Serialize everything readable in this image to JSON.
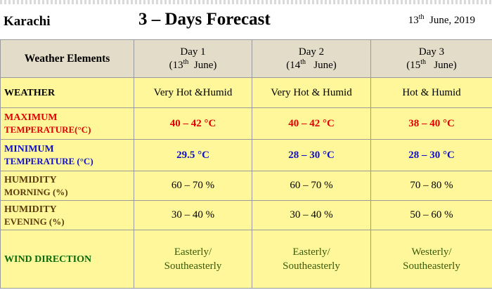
{
  "header": {
    "city": "Karachi",
    "title": "3 – Days Forecast",
    "date_day": "13",
    "date_suffix": "th",
    "date_rest": "June, 2019"
  },
  "columns": {
    "label_header": "Weather Elements",
    "days": [
      {
        "label": "Day 1",
        "date_num": "13",
        "date_suffix": "th",
        "date_month": "June"
      },
      {
        "label": "Day 2",
        "date_num": "14",
        "date_suffix": "th",
        "date_month": "June"
      },
      {
        "label": "Day 3",
        "date_num": "15",
        "date_suffix": "th",
        "date_month": "June"
      }
    ]
  },
  "rows": {
    "weather": {
      "label": "WEATHER",
      "values": [
        "Very Hot &Humid",
        "Very Hot & Humid",
        "Hot & Humid"
      ]
    },
    "max_temp": {
      "label_line1": "MAXIMUM",
      "label_line2": "TEMPERATURE(°C)",
      "values": [
        "40 – 42 °C",
        "40 – 42 °C",
        "38 – 40 °C"
      ]
    },
    "min_temp": {
      "label_line1": "MINIMUM",
      "label_line2": "TEMPERATURE (°C)",
      "values": [
        "29.5 °C",
        "28 – 30 °C",
        "28 – 30 °C"
      ]
    },
    "humidity_morning": {
      "label_line1": "HUMIDITY",
      "label_line2": "MORNING (%)",
      "values": [
        "60 – 70 %",
        "60 – 70 %",
        "70 – 80 %"
      ]
    },
    "humidity_evening": {
      "label_line1": "HUMIDITY",
      "label_line2": "EVENING (%)",
      "values": [
        "30 – 40 %",
        "30 – 40 %",
        "50 – 60 %"
      ]
    },
    "wind": {
      "label": "WIND DIRECTION",
      "values": [
        {
          "line1": "Easterly/",
          "line2": "Southeasterly"
        },
        {
          "line1": "Easterly/",
          "line2": "Southeasterly"
        },
        {
          "line1": "Westerly/",
          "line2": "Southeasterly"
        }
      ]
    }
  },
  "colors": {
    "header_bg": "#e3dcc8",
    "cell_bg": "#fff79a",
    "max_temp": "#e00000",
    "min_temp": "#1010c8",
    "humidity_label": "#5a3a0a",
    "wind_label": "#0a6a0a"
  }
}
